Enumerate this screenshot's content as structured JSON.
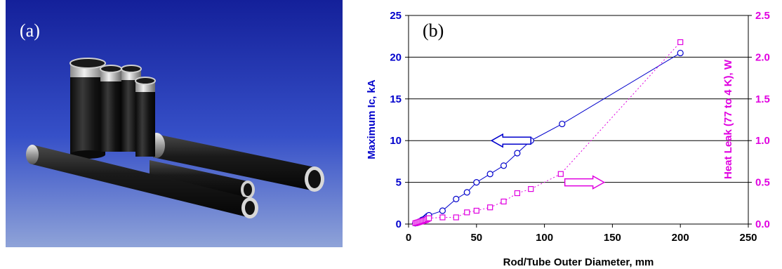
{
  "photo": {
    "label": "(a)"
  },
  "chart_data": {
    "type": "scatter",
    "panel_label": "(b)",
    "xlabel": "Rod/Tube Outer Diameter, mm",
    "ylabel_left": "Maximum Ic, kA",
    "ylabel_right": "Heat Leak (77 to 4 K), W",
    "xlim": [
      0,
      250
    ],
    "ylim_left": [
      0,
      25
    ],
    "ylim_right": [
      0,
      2.5
    ],
    "x_ticks": [
      "0",
      "50",
      "100",
      "150",
      "200",
      "250"
    ],
    "y_left_ticks": [
      "0",
      "5",
      "10",
      "15",
      "20",
      "25"
    ],
    "y_right_ticks": [
      "0.0",
      "0.5",
      "1.0",
      "1.5",
      "2.0",
      "2.5"
    ],
    "grid": "horizontal",
    "series": [
      {
        "axis": "left",
        "color": "#0000cc",
        "marker": "circle",
        "line": "solid",
        "x": [
          5,
          6,
          7,
          8,
          9,
          10,
          11,
          12,
          13,
          14,
          15,
          25,
          35,
          43,
          50,
          60,
          70,
          80,
          90,
          113,
          200
        ],
        "y": [
          0.1,
          0.15,
          0.2,
          0.3,
          0.35,
          0.5,
          0.55,
          0.65,
          0.8,
          0.95,
          1.05,
          1.6,
          3.0,
          3.8,
          5.0,
          6.0,
          7.0,
          8.5,
          10.0,
          12.0,
          20.5
        ]
      },
      {
        "axis": "right",
        "color": "#e000e0",
        "marker": "square",
        "line": "dotted",
        "x": [
          5,
          6,
          7,
          8,
          9,
          10,
          11,
          12,
          13,
          14,
          15,
          25,
          35,
          43,
          50,
          60,
          70,
          80,
          90,
          112,
          200
        ],
        "y": [
          0.01,
          0.015,
          0.02,
          0.025,
          0.03,
          0.035,
          0.04,
          0.045,
          0.05,
          0.06,
          0.07,
          0.08,
          0.08,
          0.14,
          0.16,
          0.2,
          0.27,
          0.37,
          0.42,
          0.6,
          2.18
        ]
      }
    ],
    "annotations": [
      {
        "type": "arrow",
        "direction": "left",
        "color": "#0000cc",
        "points_to": "left axis",
        "x": 90,
        "y": 10.0
      },
      {
        "type": "arrow",
        "direction": "right",
        "color": "#e000e0",
        "points_to": "right axis",
        "x": 115,
        "y": 5.0
      }
    ]
  }
}
